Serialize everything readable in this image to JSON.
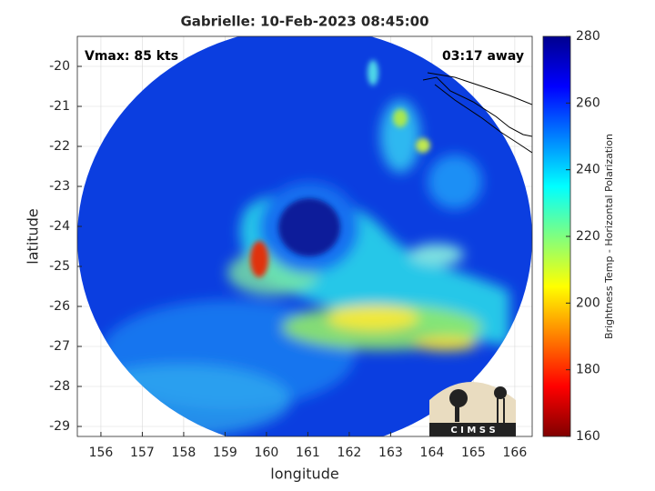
{
  "chart_data": {
    "type": "image",
    "title": "Gabrielle: 10-Feb-2023 08:45:00",
    "x_label": "longitude",
    "y_label": "latitude",
    "annotations": [
      "Vmax: 85 kts",
      "03:17 away"
    ],
    "logo_text": "C I M S S",
    "xlim": [
      155.43,
      166.42
    ],
    "xticks": [
      156,
      157,
      158,
      159,
      160,
      161,
      162,
      163,
      164,
      165,
      166
    ],
    "ylim": [
      -29.25,
      -19.25
    ],
    "yticks": [
      -29,
      -28,
      -27,
      -26,
      -25,
      -24,
      -23,
      -22,
      -21,
      -20
    ],
    "grid": true,
    "colorbar": {
      "label": "Brightness Temp - Horizontal Polarization",
      "colormap": "jet",
      "clim": [
        160,
        280
      ],
      "ticks": [
        160,
        180,
        200,
        220,
        240,
        260,
        280
      ]
    }
  }
}
